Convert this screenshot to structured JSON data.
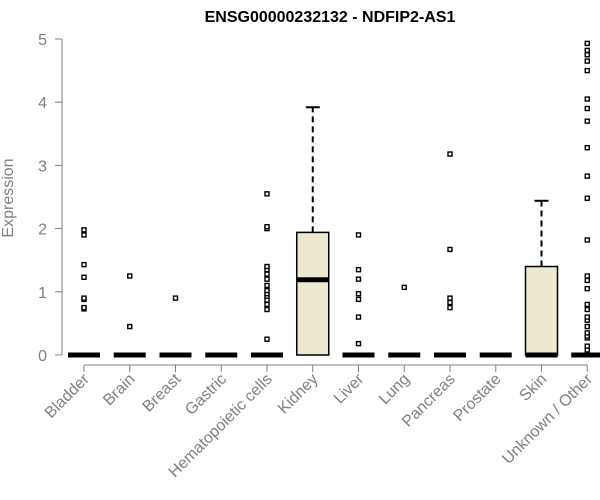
{
  "chart_data": {
    "type": "box",
    "title": "ENSG00000232132 - NDFIP2-AS1",
    "xlabel": "",
    "ylabel": "Expression",
    "ylim": [
      0,
      5
    ],
    "yticks": [
      "0",
      "1",
      "2",
      "3",
      "4",
      "5"
    ],
    "grid": false,
    "legend": "none",
    "colors": {
      "box_fill": "#ede8d0",
      "box_stroke": "#000000",
      "axis": "#808080",
      "text": "#808080"
    },
    "categories": [
      "Bladder",
      "Brain",
      "Breast",
      "Gastric",
      "Hematopoietic cells",
      "Kidney",
      "Liver",
      "Lung",
      "Pancreas",
      "Prostate",
      "Skin",
      "Unknown / Other"
    ],
    "boxes": [
      {
        "q1": 0,
        "median": 0,
        "q3": 0,
        "whisker_low": 0,
        "whisker_high": 0,
        "outliers": [
          0.73,
          0.75,
          0.88,
          0.9,
          1.23,
          1.43,
          1.9,
          1.98
        ]
      },
      {
        "q1": 0,
        "median": 0,
        "q3": 0,
        "whisker_low": 0,
        "whisker_high": 0,
        "outliers": [
          0.45,
          1.25
        ]
      },
      {
        "q1": 0,
        "median": 0,
        "q3": 0,
        "whisker_low": 0,
        "whisker_high": 0,
        "outliers": [
          0.9
        ]
      },
      {
        "q1": 0,
        "median": 0,
        "q3": 0,
        "whisker_low": 0,
        "whisker_high": 0,
        "outliers": []
      },
      {
        "q1": 0,
        "median": 0,
        "q3": 0,
        "whisker_low": 0,
        "whisker_high": 0,
        "outliers": [
          0.25,
          0.72,
          0.8,
          0.87,
          0.93,
          0.97,
          1.02,
          1.1,
          1.2,
          1.28,
          1.35,
          1.4,
          2.0,
          2.03,
          2.55
        ]
      },
      {
        "q1": 0,
        "median": 1.19,
        "q3": 1.94,
        "whisker_low": 0,
        "whisker_high": 3.92,
        "outliers": []
      },
      {
        "q1": 0,
        "median": 0,
        "q3": 0,
        "whisker_low": 0,
        "whisker_high": 0,
        "outliers": [
          0.18,
          0.6,
          0.88,
          0.97,
          1.2,
          1.35,
          1.9
        ]
      },
      {
        "q1": 0,
        "median": 0,
        "q3": 0,
        "whisker_low": 0,
        "whisker_high": 0,
        "outliers": [
          1.07
        ]
      },
      {
        "q1": 0,
        "median": 0,
        "q3": 0,
        "whisker_low": 0,
        "whisker_high": 0,
        "outliers": [
          0.75,
          0.83,
          0.9,
          1.67,
          3.18
        ]
      },
      {
        "q1": 0,
        "median": 0,
        "q3": 0,
        "whisker_low": 0,
        "whisker_high": 0,
        "outliers": []
      },
      {
        "q1": 0,
        "median": 0,
        "q3": 1.4,
        "whisker_low": 0,
        "whisker_high": 2.44,
        "outliers": []
      },
      {
        "q1": 0,
        "median": 0,
        "q3": 0,
        "whisker_low": 0,
        "whisker_high": 0,
        "outliers": [
          0.08,
          0.14,
          0.27,
          0.3,
          0.35,
          0.45,
          0.55,
          0.6,
          0.72,
          0.8,
          1.05,
          1.18,
          1.25,
          1.82,
          2.48,
          2.83,
          3.28,
          3.7,
          3.9,
          4.05,
          4.5,
          4.65,
          4.75,
          4.82,
          4.93
        ]
      }
    ]
  }
}
